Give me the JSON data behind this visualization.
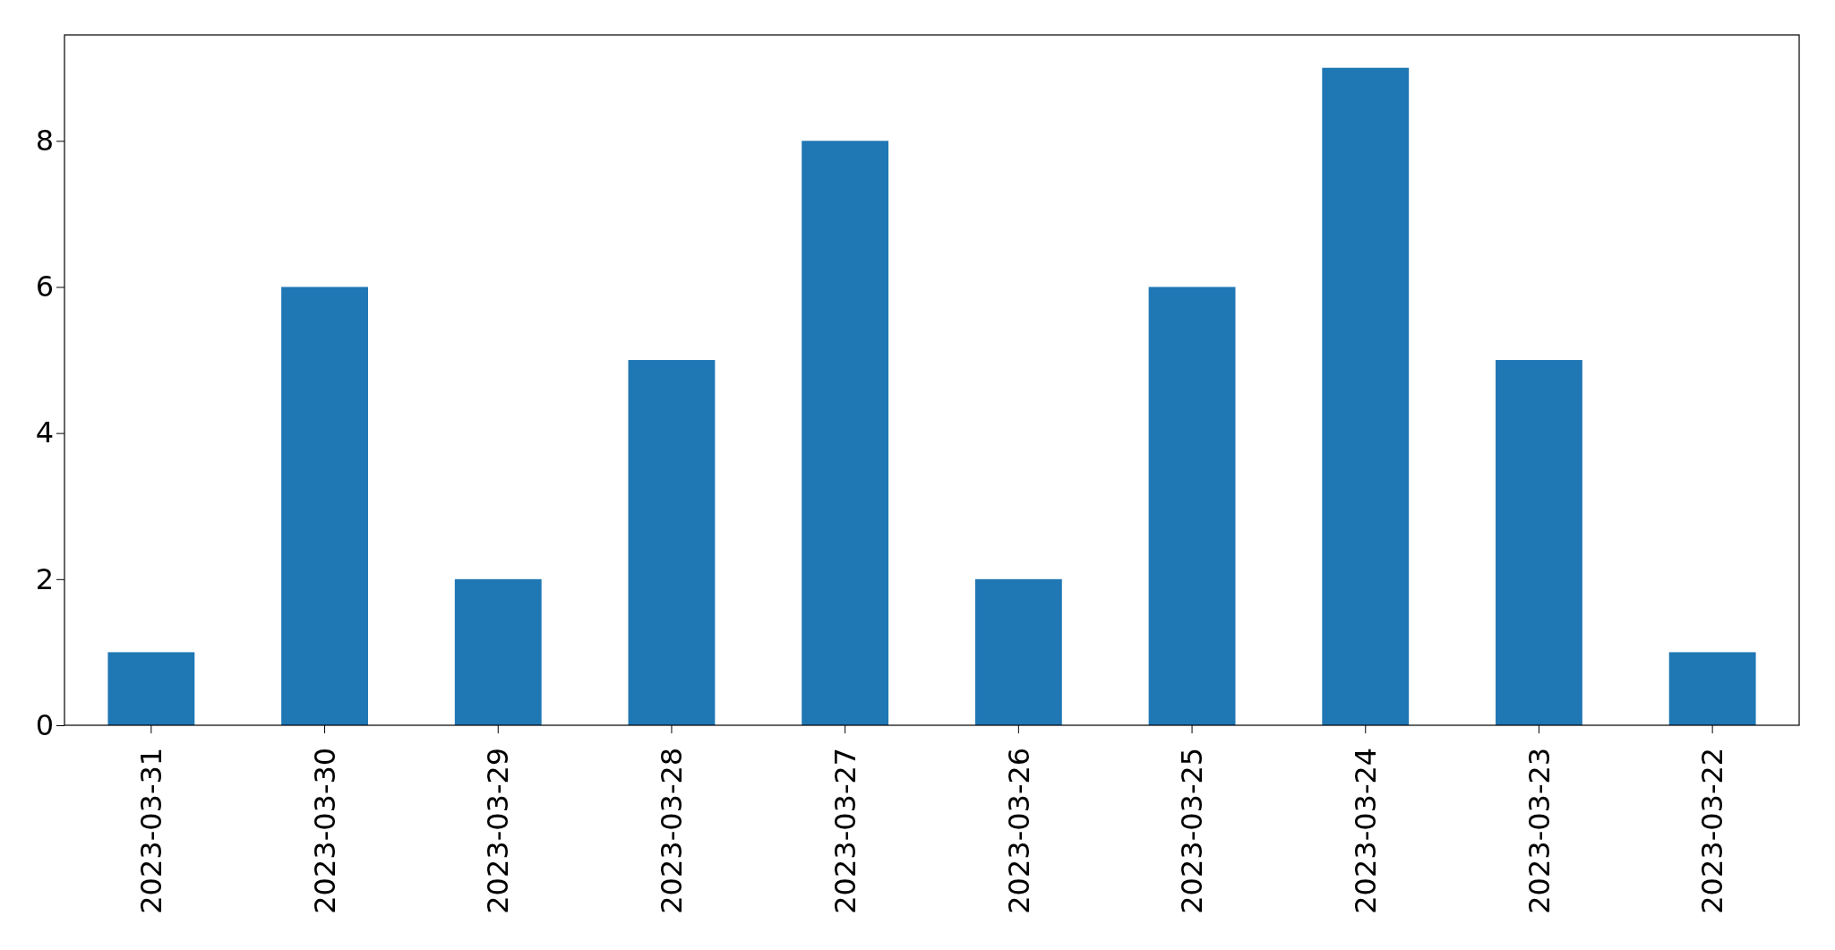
{
  "chart_data": {
    "type": "bar",
    "categories": [
      "2023-03-31",
      "2023-03-30",
      "2023-03-29",
      "2023-03-28",
      "2023-03-27",
      "2023-03-26",
      "2023-03-25",
      "2023-03-24",
      "2023-03-23",
      "2023-03-22"
    ],
    "values": [
      1,
      6,
      2,
      5,
      8,
      2,
      6,
      9,
      5,
      1
    ],
    "color": "#1f77b4",
    "ylim": [
      0,
      9.45
    ],
    "yticks": [
      0,
      2,
      4,
      6,
      8
    ],
    "grid": false
  }
}
